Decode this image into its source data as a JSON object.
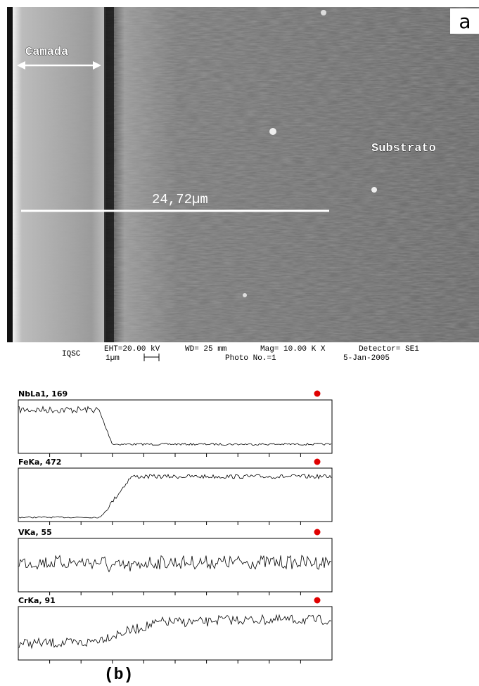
{
  "image": {
    "panel_label": "a",
    "layer_label": "Camada",
    "substrate_label": "Substrato",
    "scale_label": "24,72µm"
  },
  "info_bar": {
    "institution": "IQSC",
    "eht": "EHT=20.00 kV",
    "scale": "1µm",
    "wd": "WD= 25 mm",
    "mag": "Mag= 10.00 K X",
    "photo": "Photo No.=1",
    "detector": "Detector= SE1",
    "date": "5-Jan-2005"
  },
  "line_scans": [
    {
      "label": "NbLa1, 169"
    },
    {
      "label": "FeKa, 472"
    },
    {
      "label": "VKa, 55"
    },
    {
      "label": "CrKa, 91"
    }
  ],
  "caption": "(b)"
}
